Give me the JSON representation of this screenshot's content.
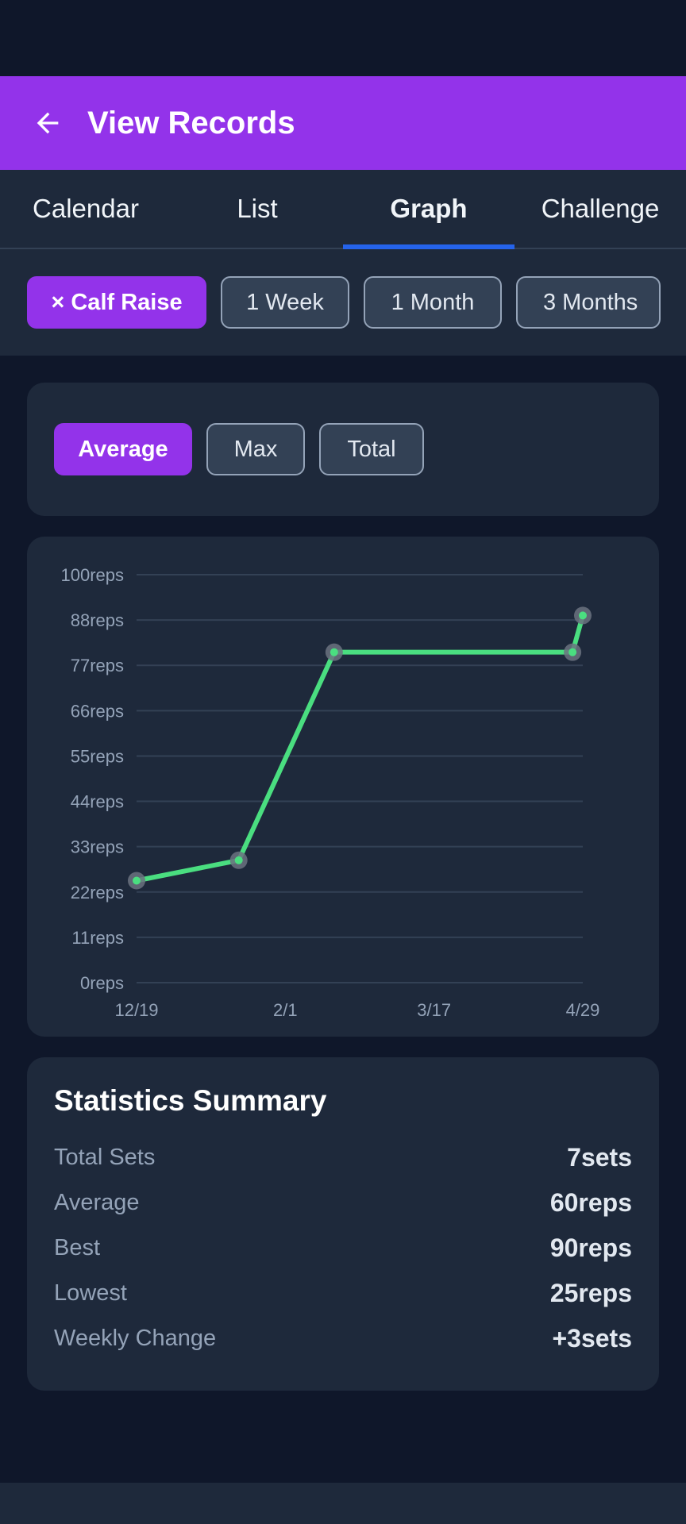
{
  "header": {
    "title": "View Records",
    "back_icon": "arrow-left-icon"
  },
  "tabs": [
    {
      "label": "Calendar",
      "active": false
    },
    {
      "label": "List",
      "active": false
    },
    {
      "label": "Graph",
      "active": true
    },
    {
      "label": "Challenge",
      "active": false
    }
  ],
  "filters": {
    "exercise_chip": "× Calf Raise",
    "ranges": [
      "1 Week",
      "1 Month",
      "3 Months"
    ]
  },
  "metric_toggle": {
    "options": [
      "Average",
      "Max",
      "Total"
    ],
    "selected": "Average"
  },
  "chart_data": {
    "type": "line",
    "y_tick_labels": [
      "100reps",
      "88reps",
      "77reps",
      "66reps",
      "55reps",
      "44reps",
      "33reps",
      "22reps",
      "11reps",
      "0reps"
    ],
    "x_tick_labels": [
      "12/19",
      "2/1",
      "3/17",
      "4/29"
    ],
    "ylim": [
      0,
      100
    ],
    "xlim": [
      "12/19",
      "4/29"
    ],
    "series": [
      {
        "color": "#4ade80",
        "points": [
          {
            "x": "12/19",
            "y": 25
          },
          {
            "x": "1/18",
            "y": 30
          },
          {
            "x": "2/15",
            "y": 81
          },
          {
            "x": "4/26",
            "y": 81
          },
          {
            "x": "4/29",
            "y": 90
          }
        ]
      }
    ],
    "grid": true
  },
  "stats": {
    "title": "Statistics Summary",
    "rows": [
      {
        "label": "Total Sets",
        "value": "7sets"
      },
      {
        "label": "Average",
        "value": "60reps"
      },
      {
        "label": "Best",
        "value": "90reps"
      },
      {
        "label": "Lowest",
        "value": "25reps"
      },
      {
        "label": "Weekly Change",
        "value": "+3sets"
      }
    ]
  },
  "colors": {
    "accent": "#9333ea",
    "tab_indicator": "#2563eb",
    "line": "#4ade80",
    "background": "#0f172a",
    "card": "#1e293b"
  }
}
